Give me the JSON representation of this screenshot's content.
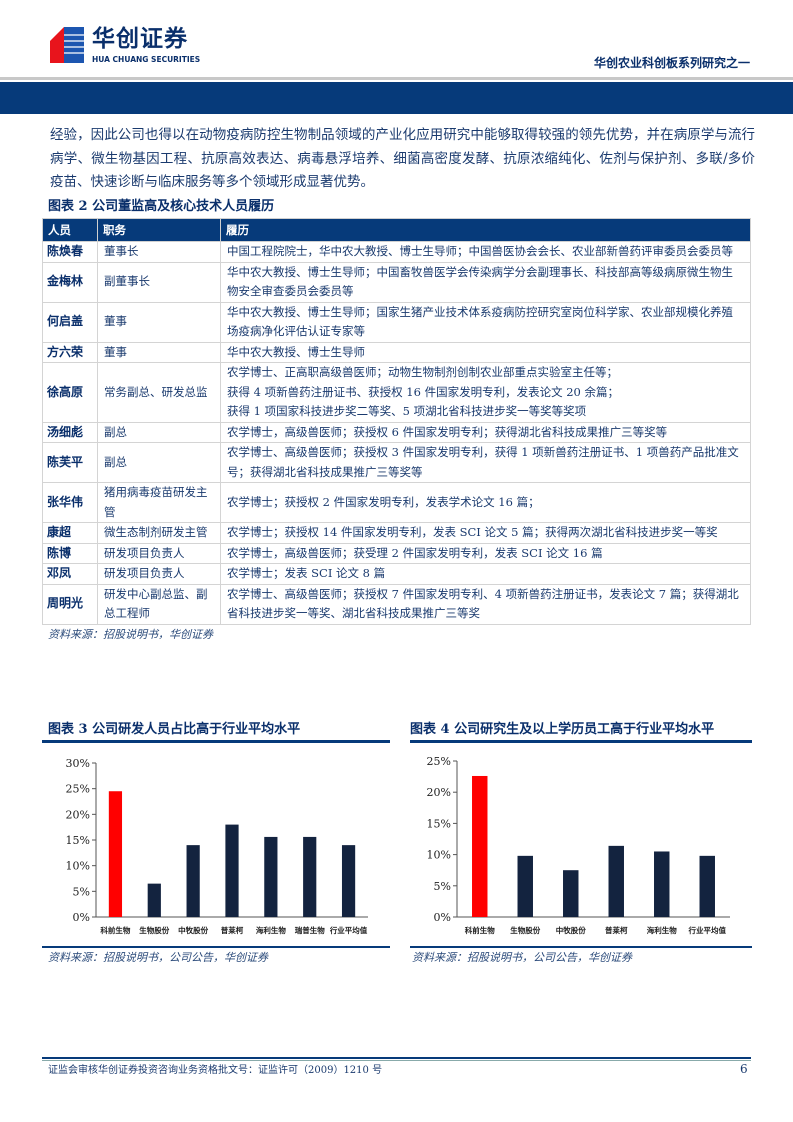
{
  "header": {
    "logo_cn": "华创证券",
    "logo_en": "HUA CHUANG SECURITIES",
    "series": "华创农业科创板系列研究之一",
    "brand_colors": {
      "navy": "#063a7a",
      "red": "#e8141c"
    }
  },
  "paragraph": "经验，因此公司也得以在动物疫病防控生物制品领域的产业化应用研究中能够取得较强的领先优势，并在病原学与流行病学、微生物基因工程、抗原高效表达、病毒悬浮培养、细菌高密度发酵、抗原浓缩纯化、佐剂与保护剂、多联/多价疫苗、快速诊断与临床服务等多个领域形成显著优势。",
  "table2": {
    "caption": "图表 2   公司董监高及核心技术人员履历",
    "headers": [
      "人员",
      "职务",
      "履历"
    ],
    "rows": [
      {
        "name": "陈焕春",
        "role": "董事长",
        "bio": "中国工程院院士，华中农大教授、博士生导师；中国兽医协会会长、农业部新兽药评审委员会委员等"
      },
      {
        "name": "金梅林",
        "role": "副董事长",
        "bio": "华中农大教授、博士生导师；中国畜牧兽医学会传染病学分会副理事长、科技部高等级病原微生物生物安全审查委员会委员等"
      },
      {
        "name": "何启盖",
        "role": "董事",
        "bio": "华中农大教授、博士生导师；国家生猪产业技术体系疫病防控研究室岗位科学家、农业部规模化养殖场疫病净化评估认证专家等"
      },
      {
        "name": "方六荣",
        "role": "董事",
        "bio": "华中农大教授、博士生导师"
      },
      {
        "name": "徐高原",
        "role": "常务副总、研发总监",
        "bio": "农学博士、正高职高级兽医师；动物生物制剂创制农业部重点实验室主任等；\n获得 4 项新兽药注册证书、获授权 16 件国家发明专利，发表论文 20 余篇；\n获得 1 项国家科技进步奖二等奖、5 项湖北省科技进步奖一等奖等奖项"
      },
      {
        "name": "汤细彪",
        "role": "副总",
        "bio": "农学博士，高级兽医师；获授权 6 件国家发明专利；获得湖北省科技成果推广三等奖等"
      },
      {
        "name": "陈芙平",
        "role": "副总",
        "bio": "农学博士、高级兽医师；获授权 3 件国家发明专利，获得 1 项新兽药注册证书、1 项兽药产品批准文号；获得湖北省科技成果推广三等奖等"
      },
      {
        "name": "张华伟",
        "role": "猪用病毒疫苗研发主管",
        "bio": "农学博士；获授权 2 件国家发明专利，发表学术论文 16 篇；"
      },
      {
        "name": "康超",
        "role": "微生态制剂研发主管",
        "bio": "农学博士；获授权 14 件国家发明专利，发表 SCI 论文 5 篇；获得两次湖北省科技进步奖一等奖"
      },
      {
        "name": "陈博",
        "role": "研发项目负责人",
        "bio": "农学博士，高级兽医师；获受理 2 件国家发明专利，发表 SCI 论文 16 篇"
      },
      {
        "name": "邓凤",
        "role": "研发项目负责人",
        "bio": "农学博士；发表 SCI 论文 8 篇"
      },
      {
        "name": "周明光",
        "role": "研发中心副总监、副总工程师",
        "bio": "农学博士、高级兽医师；获授权 7 件国家发明专利、4 项新兽药注册证书，发表论文 7 篇；获得湖北省科技进步奖一等奖、湖北省科技成果推广三等奖"
      }
    ],
    "source": "资料来源：招股说明书，华创证券"
  },
  "chart_data": [
    {
      "type": "bar",
      "title": "图表 3   公司研发人员占比高于行业平均水平",
      "categories": [
        "科前生物",
        "生物股份",
        "中牧股份",
        "普莱柯",
        "海利生物",
        "瑞普生物",
        "行业平均值"
      ],
      "values": [
        24.5,
        6.5,
        14.0,
        18.0,
        15.6,
        15.6,
        14.0
      ],
      "unit": "%",
      "ylim": [
        0,
        30
      ],
      "yticks": [
        "0%",
        "5%",
        "10%",
        "15%",
        "20%",
        "25%",
        "30%"
      ],
      "highlight_color": "#ff0000",
      "bar_color": "#13233f",
      "grid": false,
      "source": "资料来源：招股说明书，公司公告，华创证券"
    },
    {
      "type": "bar",
      "title": "图表 4   公司研究生及以上学历员工高于行业平均水平",
      "categories": [
        "科前生物",
        "生物股份",
        "中牧股份",
        "普莱柯",
        "海利生物",
        "行业平均值"
      ],
      "values": [
        22.6,
        9.8,
        7.5,
        11.4,
        10.5,
        9.8
      ],
      "unit": "%",
      "ylim": [
        0,
        25
      ],
      "yticks": [
        "0%",
        "5%",
        "10%",
        "15%",
        "20%",
        "25%"
      ],
      "highlight_color": "#ff0000",
      "bar_color": "#13233f",
      "grid": false,
      "source": "资料来源：招股说明书，公司公告，华创证券"
    }
  ],
  "footer": {
    "text": "证监会审核华创证券投资咨询业务资格批文号：证监许可（2009）1210 号",
    "page": "6"
  }
}
